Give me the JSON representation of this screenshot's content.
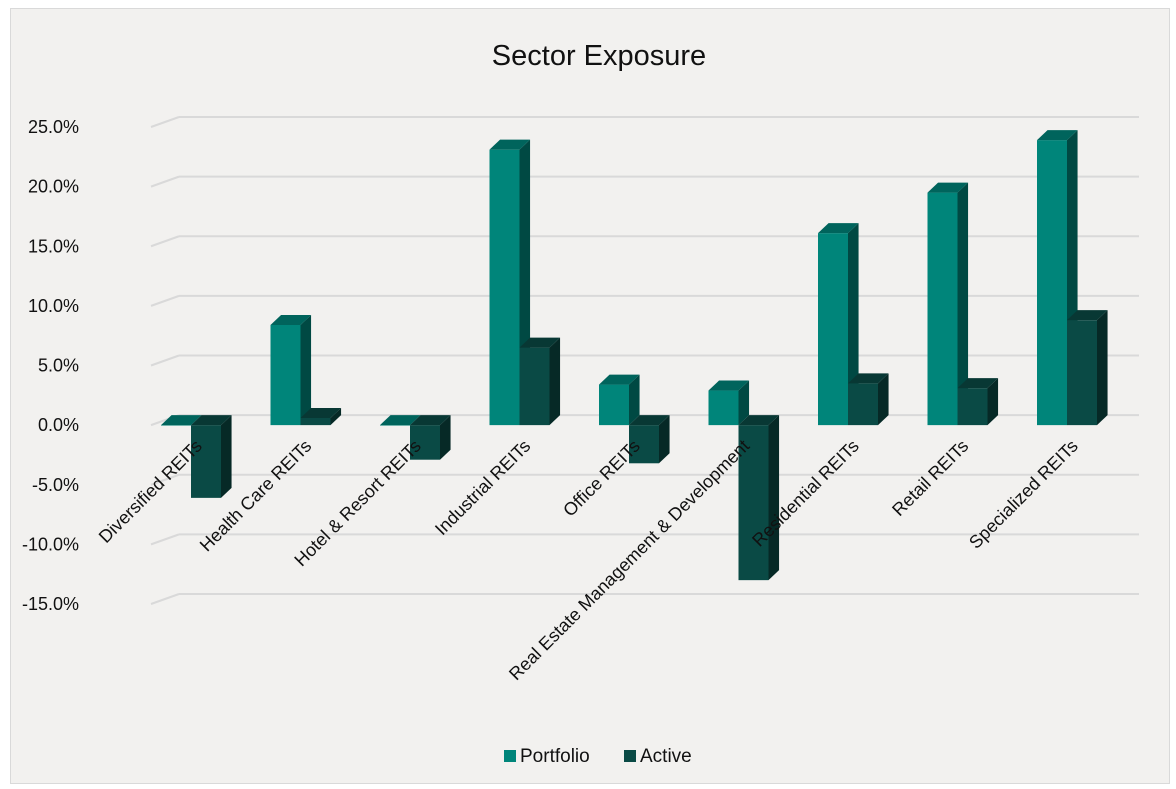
{
  "chart_data": {
    "type": "bar",
    "title": "Sector Exposure",
    "xlabel": "",
    "ylabel": "",
    "categories": [
      "Diversified REITs",
      "Health Care REITs",
      "Hotel & Resort REITs",
      "Industrial REITs",
      "Office REITs",
      "Real Estate Management & Development",
      "Residential REITs",
      "Retail REITs",
      "Specialized REITs"
    ],
    "series": [
      {
        "name": "Portfolio",
        "values": [
          0.0,
          8.4,
          0.0,
          23.1,
          3.4,
          2.9,
          16.1,
          19.5,
          23.9
        ]
      },
      {
        "name": "Active",
        "values": [
          -6.1,
          0.6,
          -2.9,
          6.5,
          -3.2,
          -13.0,
          3.5,
          3.1,
          8.8
        ]
      }
    ],
    "ylim": [
      -15,
      25
    ],
    "yticks": [
      -15,
      -10,
      -5,
      0,
      5,
      10,
      15,
      20,
      25
    ],
    "ytick_labels": [
      "-15.0%",
      "-10.0%",
      "-5.0%",
      "0.0%",
      "5.0%",
      "10.0%",
      "15.0%",
      "20.0%",
      "25.0%"
    ],
    "grid": true,
    "legend_position": "bottom",
    "style": "3d-columns",
    "colors": {
      "Portfolio": "#00857a",
      "Active": "#0a4a45",
      "background": "#f2f1ef",
      "grid": "#d9d9d9"
    }
  }
}
